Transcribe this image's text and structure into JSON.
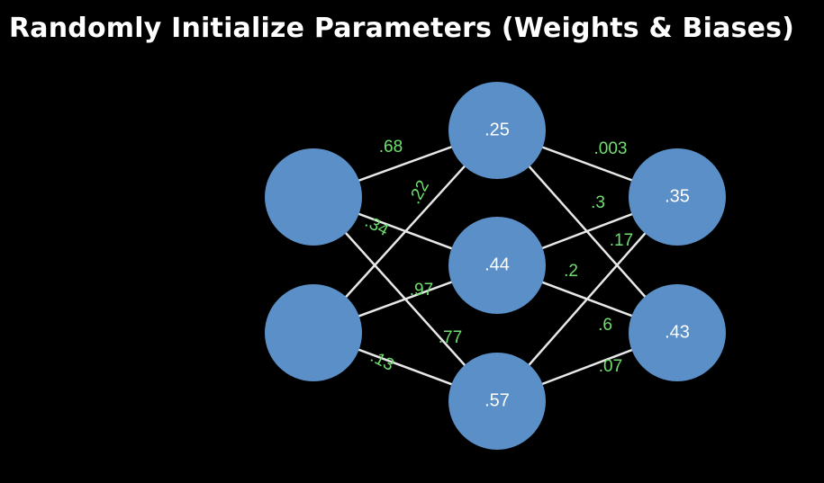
{
  "title": "Randomly Initialize Parameters (Weights & Biases)",
  "colors": {
    "background": "#000000",
    "node": "#5b8fc7",
    "edge": "#e8e8e8",
    "weight_text": "#6fe06f",
    "text": "#ffffff"
  },
  "network": {
    "input_nodes": [
      {
        "id": "in1",
        "label": ""
      },
      {
        "id": "in2",
        "label": ""
      }
    ],
    "hidden_nodes": [
      {
        "id": "h1",
        "bias": ".25"
      },
      {
        "id": "h2",
        "bias": ".44"
      },
      {
        "id": "h3",
        "bias": ".57"
      }
    ],
    "output_nodes": [
      {
        "id": "o1",
        "bias": ".35"
      },
      {
        "id": "o2",
        "bias": ".43"
      }
    ],
    "weights": [
      {
        "from": "in1",
        "to": "h1",
        "value": ".68"
      },
      {
        "from": "in1",
        "to": "h2",
        "value": ".34"
      },
      {
        "from": "in1",
        "to": "h3",
        "value": ".77"
      },
      {
        "from": "in2",
        "to": "h1",
        "value": ".22"
      },
      {
        "from": "in2",
        "to": "h2",
        "value": ".97"
      },
      {
        "from": "in2",
        "to": "h3",
        "value": ".13"
      },
      {
        "from": "h1",
        "to": "o1",
        "value": ".003"
      },
      {
        "from": "h1",
        "to": "o2",
        "value": ".17"
      },
      {
        "from": "h2",
        "to": "o1",
        "value": ".3"
      },
      {
        "from": "h2",
        "to": "o2",
        "value": ".2"
      },
      {
        "from": "h3",
        "to": "o1",
        "value": ".6"
      },
      {
        "from": "h3",
        "to": "o2",
        "value": ".07"
      }
    ]
  }
}
